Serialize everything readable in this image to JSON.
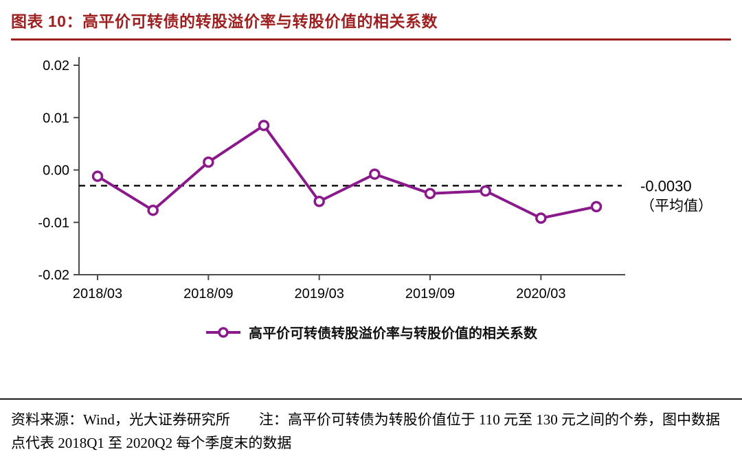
{
  "header": {
    "title": "图表 10：高平价可转债的转股溢价率与转股价值的相关系数",
    "accent_color": "#9e1f1f"
  },
  "chart_data": {
    "type": "line",
    "title": "高平价可转债的转股溢价率与转股价值的相关系数",
    "x": [
      "2018Q1",
      "2018Q2",
      "2018Q3",
      "2018Q4",
      "2019Q1",
      "2019Q2",
      "2019Q3",
      "2019Q4",
      "2020Q1",
      "2020Q2"
    ],
    "values": [
      -0.0012,
      -0.0077,
      0.0015,
      0.0085,
      -0.006,
      -0.0008,
      -0.0045,
      -0.004,
      -0.0092,
      -0.007
    ],
    "ylim": [
      -0.02,
      0.02
    ],
    "yticks": [
      0.02,
      0.01,
      0,
      -0.01,
      -0.02
    ],
    "ytick_labels": [
      "0.02",
      "0.01",
      "0.00",
      "-0.01",
      "-0.02"
    ],
    "xtick_positions": [
      0,
      2,
      4,
      6,
      8
    ],
    "xtick_labels": [
      "2018/03",
      "2018/09",
      "2019/03",
      "2019/09",
      "2020/03"
    ],
    "average": -0.003,
    "average_label_value": "-0.0030",
    "average_label_caption": "（平均值）",
    "line_color": "#8a1a8c",
    "grid": false,
    "legend_position": "bottom",
    "legend_label": "高平价可转债转股溢价率与转股价值的相关系数"
  },
  "footer": {
    "text": "资料来源：Wind，光大证券研究所　　注：高平价可转债为转股价值位于 110 元至 130 元之间的个券，图中数据点代表 2018Q1 至 2020Q2 每个季度末的数据"
  }
}
